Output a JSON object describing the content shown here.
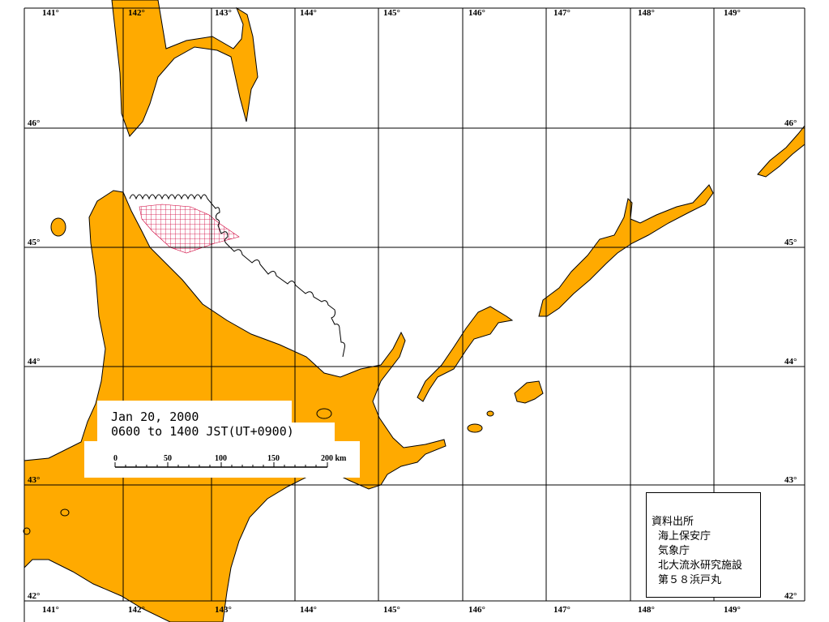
{
  "colors": {
    "land": "#FFAA00",
    "ice_hatch": "#d0003a",
    "grid": "#000000",
    "ice_edge": "#000000"
  },
  "lon_labels": [
    "141°",
    "142°",
    "143°",
    "144°",
    "145°",
    "146°",
    "147°",
    "148°",
    "149°"
  ],
  "lat_labels": [
    "46°",
    "45°",
    "44°",
    "43°",
    "42°"
  ],
  "info": {
    "date": "Jan 20, 2000",
    "time": "0600 to 1400 JST(UT+0900)",
    "scale": {
      "ticks": [
        "0",
        "50",
        "100",
        "150",
        "200 km"
      ]
    }
  },
  "source": {
    "title": "資料出所",
    "lines": [
      "海上保安庁",
      "気象庁",
      "北大流氷研究施設",
      "第５８浜戸丸"
    ]
  }
}
